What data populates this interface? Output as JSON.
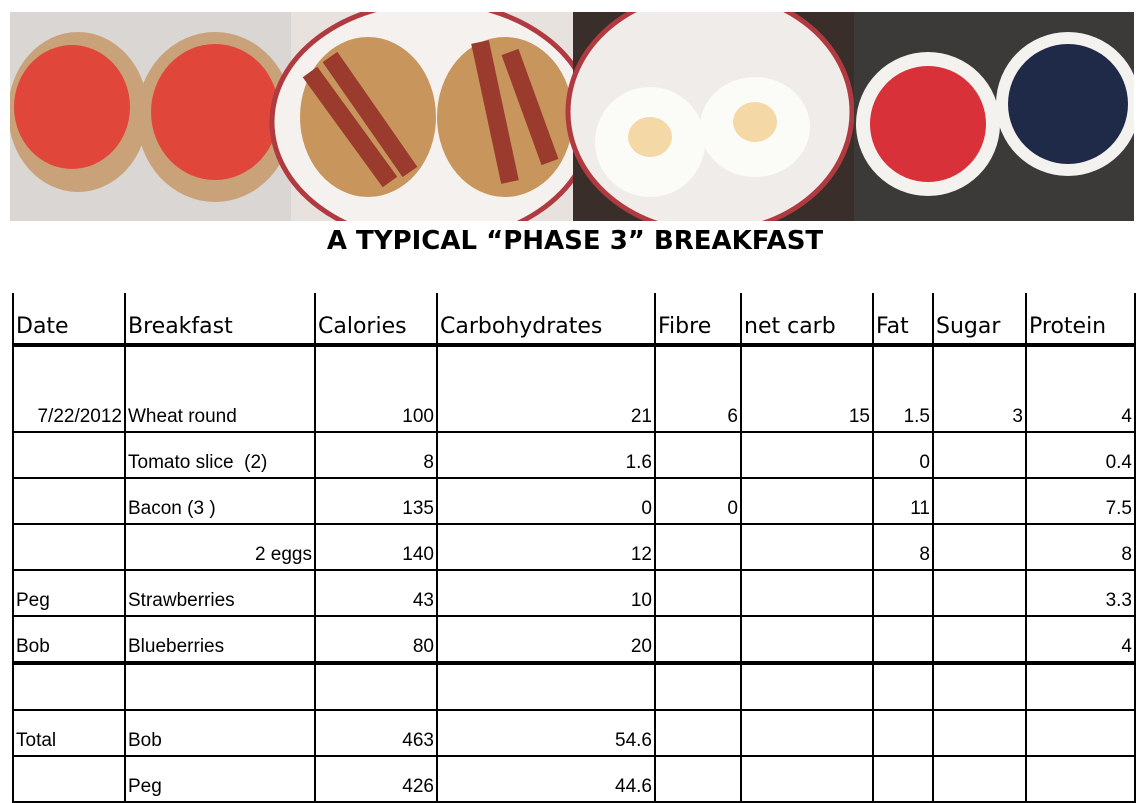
{
  "header": {
    "title": "A TYPICAL “PHASE 3” BREAKFAST"
  },
  "table": {
    "columns": [
      "Date",
      "Breakfast",
      "Calories",
      "Carbohydrates",
      "Fibre",
      "net carb",
      "Fat",
      "Sugar",
      "Protein"
    ],
    "rows": [
      [
        "7/22/2012",
        "Wheat round",
        100,
        21,
        6,
        15,
        1.5,
        3,
        4
      ],
      [
        null,
        "Tomato slice  (2)",
        8,
        1.6,
        null,
        null,
        0,
        null,
        0.4
      ],
      [
        null,
        "Bacon (3 )",
        135,
        0,
        0,
        null,
        11,
        null,
        7.5
      ],
      [
        null,
        "2 eggs",
        140,
        12,
        null,
        null,
        8,
        null,
        8
      ],
      [
        "Peg",
        "Strawberries",
        43,
        10,
        null,
        null,
        null,
        null,
        3.3
      ],
      [
        "Bob",
        "Blueberries",
        80,
        20,
        null,
        null,
        null,
        null,
        4
      ],
      [
        null,
        null,
        null,
        null,
        null,
        null,
        null,
        null,
        null
      ],
      [
        "Total",
        "Bob",
        463,
        54.6,
        null,
        null,
        null,
        null,
        null
      ],
      [
        null,
        "Peg",
        426,
        44.6,
        null,
        null,
        null,
        null,
        null
      ]
    ]
  }
}
